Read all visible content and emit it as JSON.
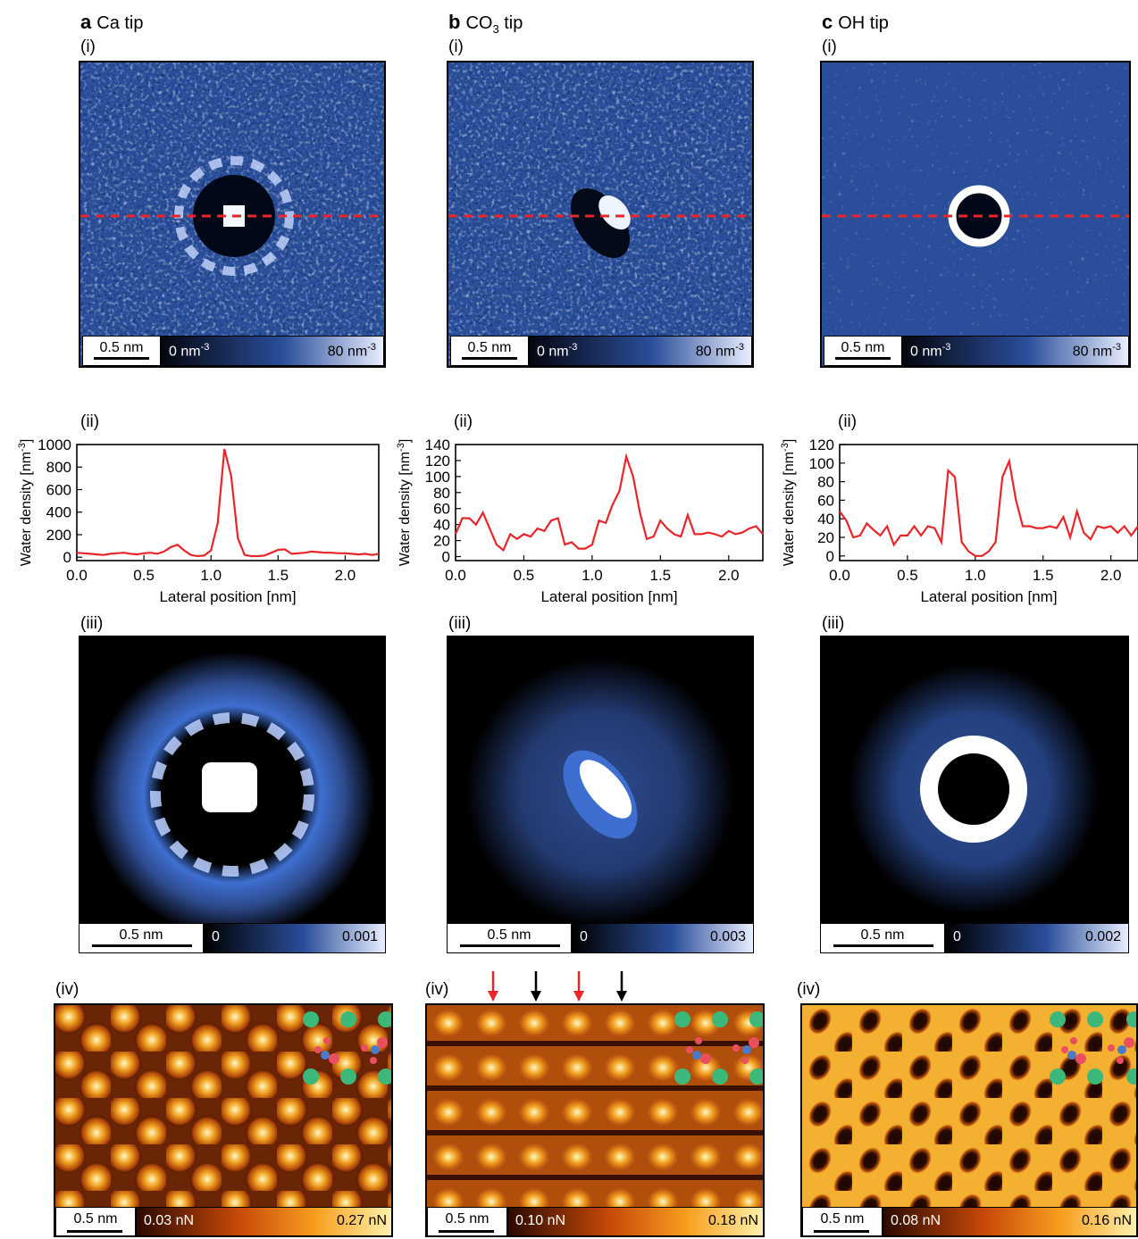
{
  "columns": [
    {
      "letter": "a",
      "title": "Ca tip",
      "density_scale": "0.5 nm",
      "density_lo": "0 nm",
      "density_hi": "80 nm",
      "unit_sup": "-3",
      "plot": {
        "ylabel_main": "Water density [nm",
        "ylabel_sup": "-3",
        "ylabel_end": "]",
        "xlabel": "Lateral position [nm]",
        "yticks": [
          "0",
          "200",
          "400",
          "600",
          "800",
          "1000"
        ],
        "xticks": [
          "0.0",
          "0.5",
          "1.0",
          "1.5",
          "2.0"
        ]
      },
      "prob_scale": "0.5 nm",
      "prob_lo": "0",
      "prob_hi": "0.001",
      "afm_scale": "0.5 nm",
      "afm_lo": "0.03 nN",
      "afm_hi": "0.27 nN"
    },
    {
      "letter": "b",
      "title_main": "CO",
      "title_sub": "3",
      "title_end": " tip",
      "density_scale": "0.5 nm",
      "density_lo": "0 nm",
      "density_hi": "80 nm",
      "unit_sup": "-3",
      "plot": {
        "ylabel_main": "Water density [nm",
        "ylabel_sup": "-3",
        "ylabel_end": "]",
        "xlabel": "Lateral position [nm]",
        "yticks": [
          "0",
          "20",
          "40",
          "60",
          "80",
          "100",
          "120",
          "140"
        ],
        "xticks": [
          "0.0",
          "0.5",
          "1.0",
          "1.5",
          "2.0"
        ]
      },
      "prob_scale": "0.5 nm",
      "prob_lo": "0",
      "prob_hi": "0.003",
      "afm_scale": "0.5 nm",
      "afm_lo": "0.10 nN",
      "afm_hi": "0.18 nN"
    },
    {
      "letter": "c",
      "title": "OH tip",
      "density_scale": "0.5 nm",
      "density_lo": "0 nm",
      "density_hi": "80 nm",
      "unit_sup": "-3",
      "plot": {
        "ylabel_main": "Water density [nm",
        "ylabel_sup": "-3",
        "ylabel_end": "]",
        "xlabel": "Lateral position [nm]",
        "yticks": [
          "0",
          "20",
          "40",
          "60",
          "80",
          "100",
          "120"
        ],
        "xticks": [
          "0.0",
          "0.5",
          "1.0",
          "1.5",
          "2.0"
        ]
      },
      "prob_scale": "0.5 nm",
      "prob_lo": "0",
      "prob_hi": "0.002",
      "afm_scale": "0.5 nm",
      "afm_lo": "0.08 nN",
      "afm_hi": "0.16 nN"
    }
  ],
  "sublabels": {
    "i": "(i)",
    "ii": "(ii)",
    "iii": "(iii)",
    "iv": "(iv)"
  },
  "colors": {
    "density": "#2a4e9a",
    "line": "#e8262a",
    "afm_dark": "#2b0a00",
    "afm_mid": "#e07a10",
    "afm_light": "#fff3b0"
  },
  "chart_data": [
    {
      "type": "line",
      "xlabel": "Lateral position [nm]",
      "ylabel": "Water density [nm-3]",
      "xlim": [
        0,
        2.25
      ],
      "ylim": [
        -30,
        1000
      ],
      "x": [
        0,
        0.05,
        0.1,
        0.15,
        0.2,
        0.25,
        0.3,
        0.35,
        0.4,
        0.45,
        0.5,
        0.55,
        0.6,
        0.65,
        0.7,
        0.75,
        0.8,
        0.85,
        0.9,
        0.95,
        1.0,
        1.05,
        1.1,
        1.15,
        1.2,
        1.25,
        1.3,
        1.35,
        1.4,
        1.45,
        1.5,
        1.55,
        1.6,
        1.65,
        1.7,
        1.75,
        1.8,
        1.85,
        1.9,
        1.95,
        2.0,
        2.05,
        2.1,
        2.15,
        2.2,
        2.25
      ],
      "series": [
        {
          "values": [
            40,
            35,
            30,
            25,
            20,
            30,
            35,
            40,
            30,
            25,
            35,
            40,
            30,
            50,
            90,
            110,
            60,
            20,
            10,
            15,
            60,
            300,
            960,
            720,
            170,
            20,
            10,
            10,
            15,
            40,
            65,
            70,
            30,
            35,
            40,
            50,
            45,
            40,
            40,
            35,
            35,
            30,
            25,
            30,
            20,
            30
          ]
        }
      ]
    },
    {
      "type": "line",
      "xlabel": "Lateral position [nm]",
      "ylabel": "Water density [nm-3]",
      "xlim": [
        0,
        2.25
      ],
      "ylim": [
        -5,
        140
      ],
      "x": [
        0,
        0.05,
        0.1,
        0.15,
        0.2,
        0.25,
        0.3,
        0.35,
        0.4,
        0.45,
        0.5,
        0.55,
        0.6,
        0.65,
        0.7,
        0.75,
        0.8,
        0.85,
        0.9,
        0.95,
        1.0,
        1.05,
        1.1,
        1.15,
        1.2,
        1.25,
        1.3,
        1.35,
        1.4,
        1.45,
        1.5,
        1.55,
        1.6,
        1.65,
        1.7,
        1.75,
        1.8,
        1.85,
        1.9,
        1.95,
        2.0,
        2.05,
        2.1,
        2.15,
        2.2,
        2.25
      ],
      "series": [
        {
          "values": [
            28,
            48,
            48,
            40,
            55,
            35,
            15,
            8,
            28,
            22,
            28,
            25,
            35,
            32,
            45,
            48,
            15,
            18,
            10,
            10,
            15,
            45,
            42,
            65,
            82,
            125,
            100,
            55,
            22,
            25,
            45,
            35,
            28,
            25,
            52,
            28,
            28,
            30,
            28,
            25,
            32,
            28,
            30,
            35,
            38,
            28
          ]
        }
      ]
    },
    {
      "type": "line",
      "xlabel": "Lateral position [nm]",
      "ylabel": "Water density [nm-3]",
      "xlim": [
        0,
        2.2
      ],
      "ylim": [
        -5,
        120
      ],
      "x": [
        0,
        0.05,
        0.1,
        0.15,
        0.2,
        0.25,
        0.3,
        0.35,
        0.4,
        0.45,
        0.5,
        0.55,
        0.6,
        0.65,
        0.7,
        0.75,
        0.8,
        0.85,
        0.9,
        0.95,
        1.0,
        1.05,
        1.1,
        1.15,
        1.2,
        1.25,
        1.3,
        1.35,
        1.4,
        1.45,
        1.5,
        1.55,
        1.6,
        1.65,
        1.7,
        1.75,
        1.8,
        1.85,
        1.9,
        1.95,
        2.0,
        2.05,
        2.1,
        2.15,
        2.2
      ],
      "series": [
        {
          "values": [
            48,
            38,
            20,
            22,
            35,
            28,
            22,
            32,
            12,
            22,
            22,
            32,
            22,
            32,
            30,
            15,
            92,
            85,
            15,
            5,
            0,
            0,
            5,
            15,
            85,
            102,
            60,
            32,
            32,
            30,
            30,
            32,
            30,
            42,
            20,
            48,
            25,
            18,
            32,
            30,
            32,
            25,
            32,
            22,
            32
          ]
        }
      ]
    }
  ]
}
